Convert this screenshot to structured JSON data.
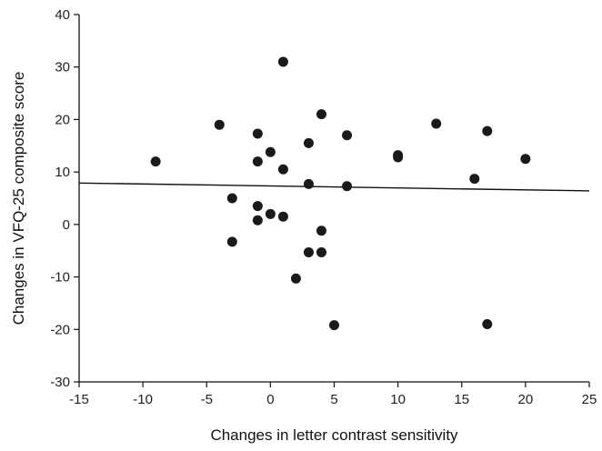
{
  "chart_data": {
    "type": "scatter",
    "xlabel": "Changes in letter contrast sensitivity",
    "ylabel": "Changes in VFQ-25 composite score",
    "xlim": [
      -15,
      25
    ],
    "ylim": [
      -30,
      40
    ],
    "xticks": [
      -15,
      -10,
      -5,
      0,
      5,
      10,
      15,
      20,
      25
    ],
    "yticks": [
      -30,
      -20,
      -10,
      0,
      10,
      20,
      30,
      40
    ],
    "xtick_labels": [
      "-15",
      "-10",
      "-5",
      "0",
      "5",
      "10",
      "15",
      "20",
      "25"
    ],
    "ytick_labels": [
      "-30",
      "-20",
      "-10",
      "0",
      "10",
      "20",
      "30",
      "40"
    ],
    "grid": false,
    "marker_color": "#1a1a1a",
    "points": [
      {
        "x": -9,
        "y": 12
      },
      {
        "x": -4,
        "y": 19
      },
      {
        "x": -3,
        "y": 5
      },
      {
        "x": -3,
        "y": -3.3
      },
      {
        "x": -1,
        "y": 17.3
      },
      {
        "x": -1,
        "y": 12
      },
      {
        "x": -1,
        "y": 3.5
      },
      {
        "x": -1,
        "y": 0.8
      },
      {
        "x": 0,
        "y": 13.8
      },
      {
        "x": 0,
        "y": 2
      },
      {
        "x": 1,
        "y": 31
      },
      {
        "x": 1,
        "y": 10.5
      },
      {
        "x": 1,
        "y": 1.5
      },
      {
        "x": 2,
        "y": -10.3
      },
      {
        "x": 3,
        "y": 15.5
      },
      {
        "x": 3,
        "y": 7.7
      },
      {
        "x": 3,
        "y": -5.3
      },
      {
        "x": 4,
        "y": 21
      },
      {
        "x": 4,
        "y": -1.2
      },
      {
        "x": 4,
        "y": -5.3
      },
      {
        "x": 5,
        "y": -19.2
      },
      {
        "x": 6,
        "y": 17
      },
      {
        "x": 6,
        "y": 7.3
      },
      {
        "x": 10,
        "y": 13.2
      },
      {
        "x": 10,
        "y": 12.8
      },
      {
        "x": 13,
        "y": 19.2
      },
      {
        "x": 16,
        "y": 8.7
      },
      {
        "x": 17,
        "y": 17.8
      },
      {
        "x": 17,
        "y": -19
      },
      {
        "x": 20,
        "y": 12.5
      }
    ],
    "trend_line": {
      "x": [
        -15,
        25
      ],
      "y": [
        7.9,
        6.4
      ]
    }
  }
}
